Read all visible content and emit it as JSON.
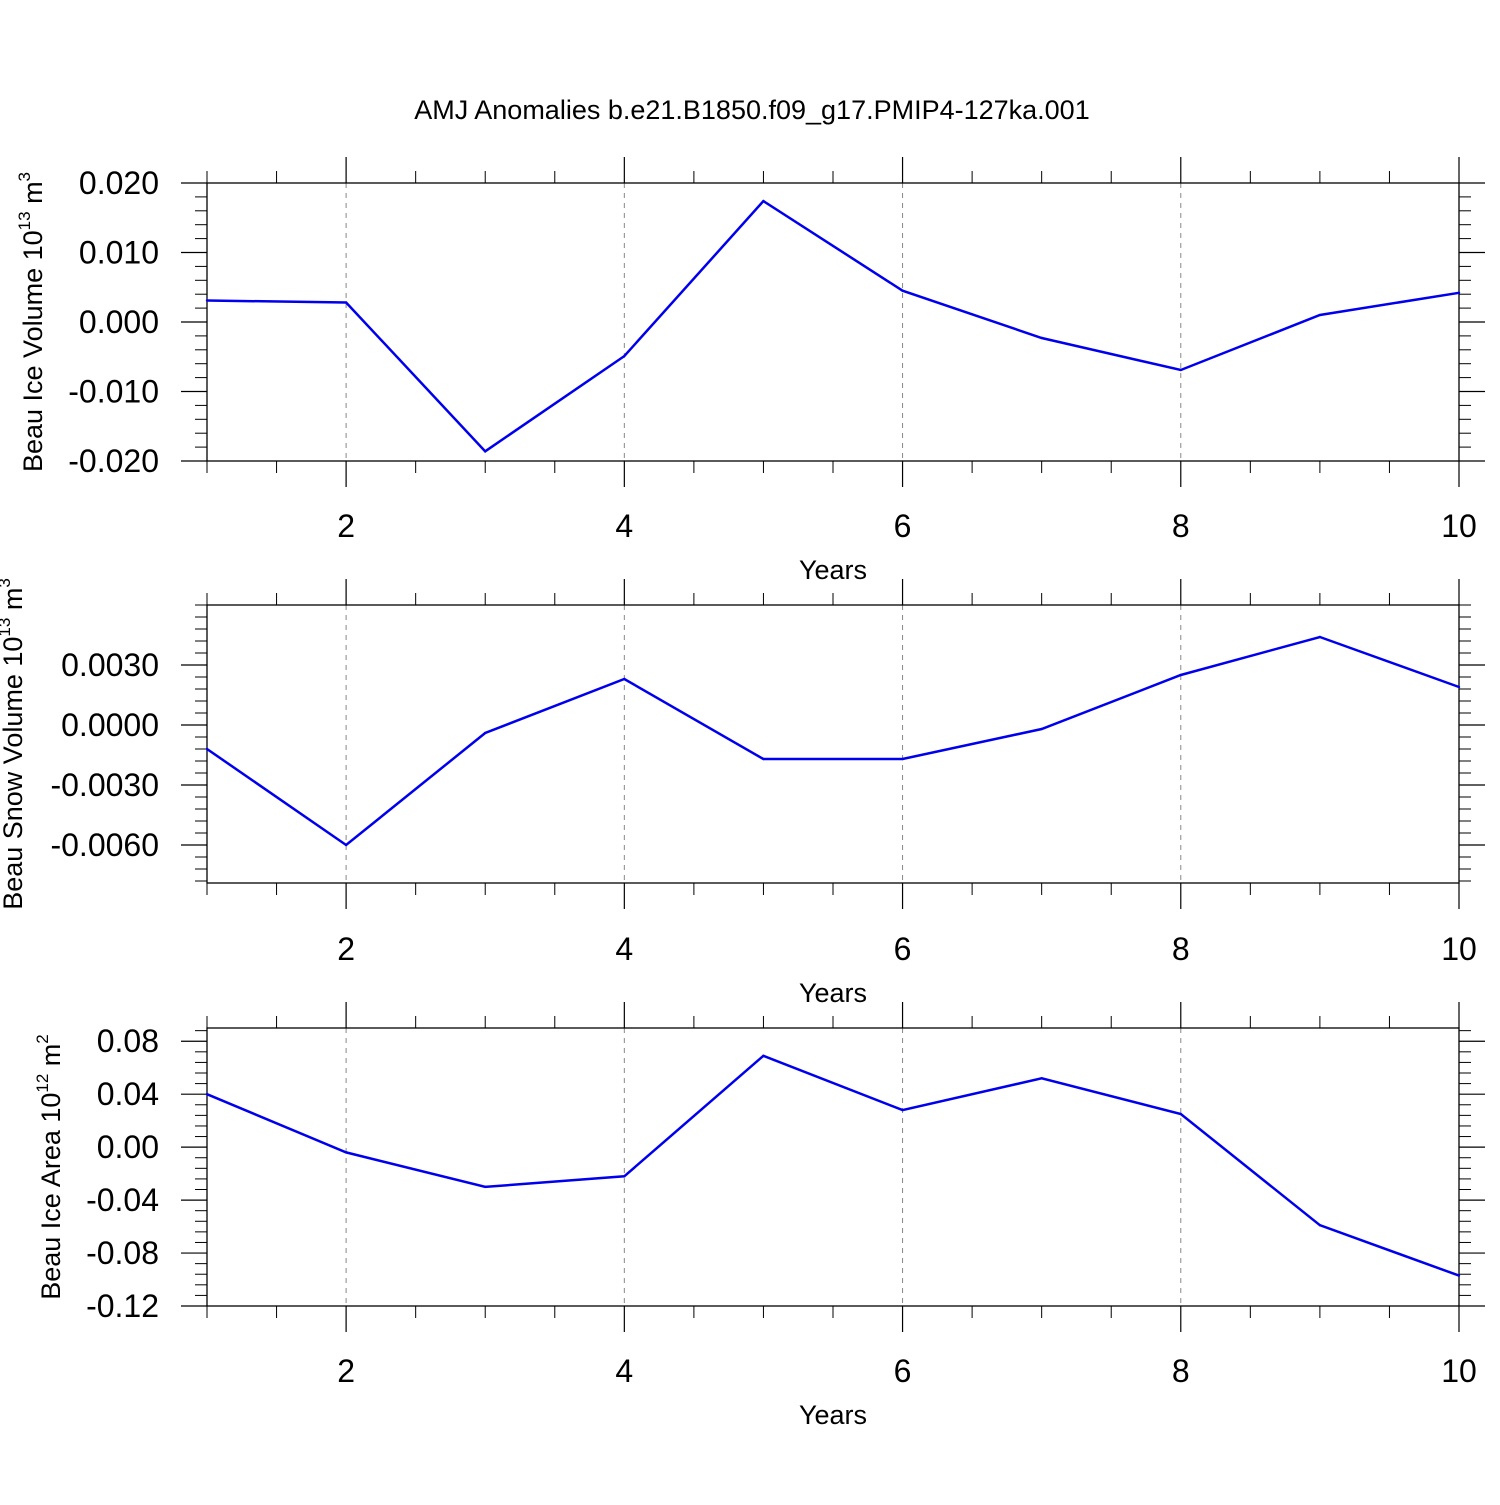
{
  "title": "AMJ Anomalies b.e21.B1850.f09_g17.PMIP4-127ka.001",
  "colors": {
    "line": "#0000ee",
    "axis": "#000000",
    "grid": "#888888"
  },
  "chart_data": [
    {
      "type": "line",
      "ylabel": {
        "prefix": "Beau Ice Volume 10",
        "exponent": "13",
        "unit": " m",
        "unit_exponent": "3"
      },
      "xlabel": "Years",
      "xlim": [
        1,
        10
      ],
      "ylim": [
        -0.02,
        0.02
      ],
      "xticks": [
        2,
        4,
        6,
        8,
        10
      ],
      "xtick_labels": [
        "2",
        "4",
        "6",
        "8",
        "10"
      ],
      "yticks": [
        -0.02,
        -0.01,
        0.0,
        0.01,
        0.02
      ],
      "ytick_labels": [
        "-0.020",
        "-0.010",
        "0.000",
        "0.010",
        "0.020"
      ],
      "x": [
        1,
        2,
        3,
        4,
        5,
        6,
        7,
        8,
        9,
        10
      ],
      "series": [
        {
          "name": "Beau Ice Volume",
          "values": [
            0.0031,
            0.0028,
            -0.0186,
            -0.0049,
            0.0174,
            0.0045,
            -0.0023,
            -0.0069,
            0.001,
            0.0042
          ]
        }
      ]
    },
    {
      "type": "line",
      "ylabel": {
        "prefix": "Beau Snow Volume 10",
        "exponent": "13",
        "unit": " m",
        "unit_exponent": "3"
      },
      "xlabel": "Years",
      "xlim": [
        1,
        10
      ],
      "ylim": [
        -0.0079,
        0.006
      ],
      "xticks": [
        2,
        4,
        6,
        8,
        10
      ],
      "xtick_labels": [
        "2",
        "4",
        "6",
        "8",
        "10"
      ],
      "yticks": [
        -0.006,
        -0.003,
        0.0,
        0.003
      ],
      "ytick_labels": [
        "-0.0060",
        "-0.0030",
        "0.0000",
        "0.0030"
      ],
      "x": [
        1,
        2,
        3,
        4,
        5,
        6,
        7,
        8,
        9,
        10
      ],
      "series": [
        {
          "name": "Beau Snow Volume",
          "values": [
            -0.0012,
            -0.006,
            -0.0004,
            0.0023,
            -0.0017,
            -0.0017,
            -0.0002,
            0.0025,
            0.0044,
            0.0019
          ]
        }
      ]
    },
    {
      "type": "line",
      "ylabel": {
        "prefix": "Beau Ice Area 10",
        "exponent": "12",
        "unit": " m",
        "unit_exponent": "2"
      },
      "xlabel": "Years",
      "xlim": [
        1,
        10
      ],
      "ylim": [
        -0.12,
        0.09
      ],
      "xticks": [
        2,
        4,
        6,
        8,
        10
      ],
      "xtick_labels": [
        "2",
        "4",
        "6",
        "8",
        "10"
      ],
      "yticks": [
        -0.12,
        -0.08,
        -0.04,
        0.0,
        0.04,
        0.08
      ],
      "ytick_labels": [
        "-0.12",
        "-0.08",
        "-0.04",
        "0.00",
        "0.04",
        "0.08"
      ],
      "x": [
        1,
        2,
        3,
        4,
        5,
        6,
        7,
        8,
        9,
        10
      ],
      "series": [
        {
          "name": "Beau Ice Area",
          "values": [
            0.04,
            -0.004,
            -0.03,
            -0.022,
            0.069,
            0.028,
            0.052,
            0.025,
            -0.059,
            -0.097
          ]
        }
      ]
    }
  ]
}
